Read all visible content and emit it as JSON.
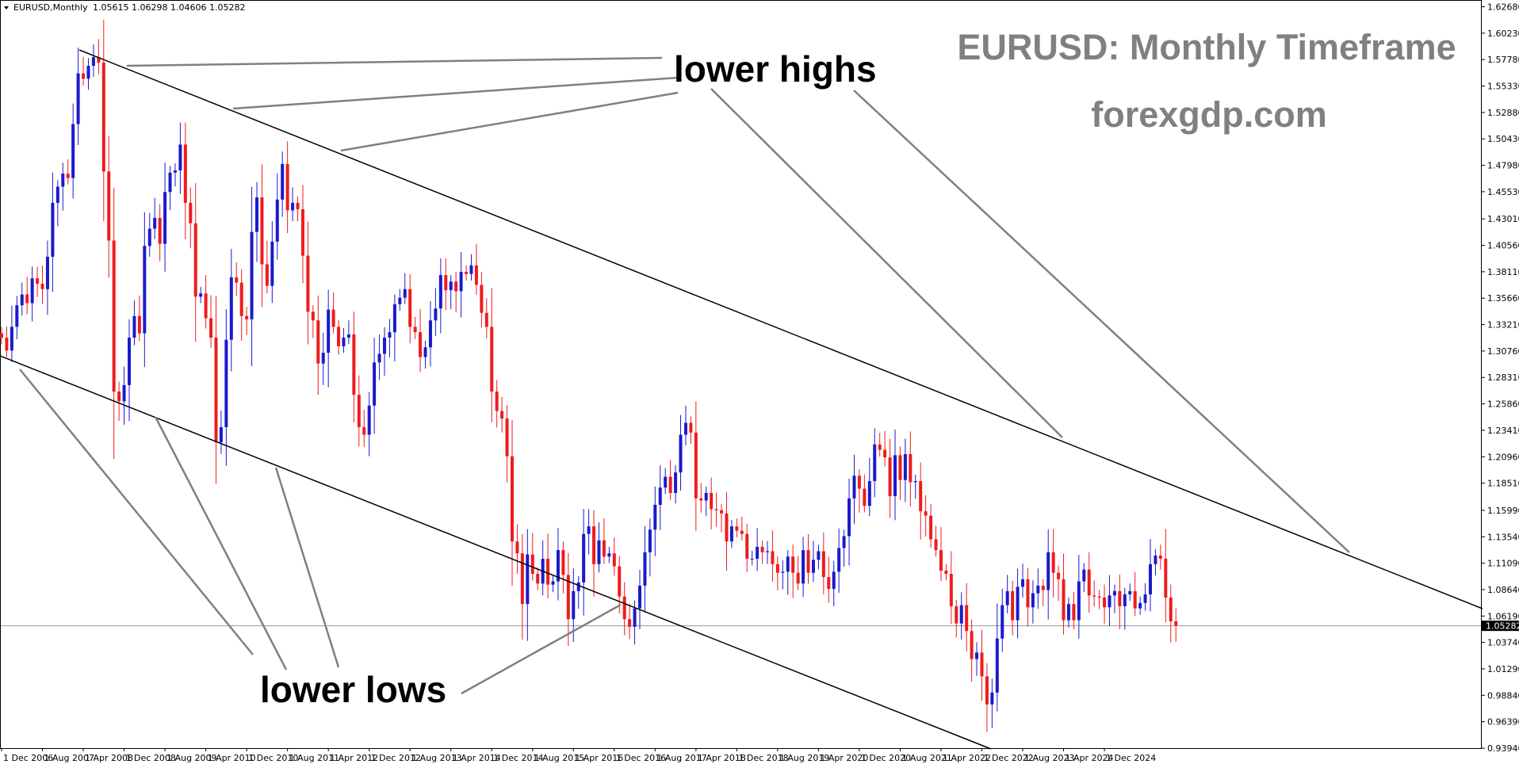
{
  "header": {
    "symbol_label": "EURUSD,Monthly",
    "ohlc": "1.05615 1.06298 1.04606 1.05282"
  },
  "watermark": {
    "title": "EURUSD: Monthly Timeframe",
    "site": "forexgdp.com"
  },
  "annotations": {
    "lower_highs": "lower highs",
    "lower_lows": "lower lows"
  },
  "colors": {
    "bull": "#1a1acc",
    "bear": "#ee1c1c",
    "grid_axis": "#000000",
    "annotation_line": "#808080",
    "watermark": "#808080"
  },
  "chart_data": {
    "type": "candlestick",
    "title": "EURUSD,Monthly",
    "current_price": 1.05282,
    "y_axis": {
      "range": [
        0.9394,
        1.6323
      ],
      "ticks": [
        "1.62680",
        "1.60230",
        "1.57780",
        "1.55330",
        "1.52880",
        "1.50430",
        "1.47980",
        "1.45530",
        "1.43010",
        "1.40560",
        "1.38110",
        "1.35660",
        "1.33210",
        "1.30760",
        "1.28310",
        "1.25860",
        "1.23410",
        "1.20960",
        "1.18510",
        "1.15990",
        "1.13540",
        "1.11090",
        "1.08640",
        "1.06190",
        "1.05282",
        "1.03740",
        "1.01290",
        "0.98840",
        "0.96390",
        "0.93940"
      ]
    },
    "x_axis": {
      "ticks": [
        "1 Dec 2006",
        "1 Aug 2007",
        "1 Apr 2008",
        "1 Dec 2008",
        "1 Aug 2009",
        "1 Apr 2010",
        "1 Dec 2010",
        "1 Aug 2011",
        "1 Apr 2012",
        "1 Dec 2012",
        "1 Aug 2013",
        "1 Apr 2014",
        "1 Dec 2014",
        "1 Aug 2015",
        "1 Apr 2016",
        "1 Dec 2016",
        "1 Aug 2017",
        "1 Apr 2018",
        "1 Dec 2018",
        "1 Aug 2019",
        "1 Apr 2020",
        "1 Dec 2020",
        "1 Aug 2021",
        "1 Apr 2022",
        "1 Dec 2022",
        "1 Aug 2023",
        "1 Apr 2024",
        "1 Dec 2024"
      ]
    },
    "series": [
      {
        "start": "2006-12",
        "closes": [
          1.32,
          1.308,
          1.33,
          1.35,
          1.36,
          1.352,
          1.375,
          1.37,
          1.365,
          1.395,
          1.445,
          1.46,
          1.472,
          1.468,
          1.518,
          1.565,
          1.56,
          1.572,
          1.58,
          1.575,
          1.474,
          1.41,
          1.27,
          1.261,
          1.276,
          1.32,
          1.34,
          1.324,
          1.405,
          1.421,
          1.431,
          1.407,
          1.455,
          1.473,
          1.475,
          1.499,
          1.445,
          1.426,
          1.358,
          1.361,
          1.338,
          1.32,
          1.223,
          1.237,
          1.318,
          1.376,
          1.371,
          1.34,
          1.337,
          1.418,
          1.45,
          1.388,
          1.368,
          1.409,
          1.448,
          1.481,
          1.438,
          1.445,
          1.439,
          1.396,
          1.344,
          1.336,
          1.296,
          1.306,
          1.346,
          1.33,
          1.312,
          1.32,
          1.323,
          1.267,
          1.237,
          1.23,
          1.257,
          1.297,
          1.305,
          1.32,
          1.325,
          1.351,
          1.357,
          1.365,
          1.33,
          1.325,
          1.302,
          1.311,
          1.336,
          1.347,
          1.378,
          1.364,
          1.372,
          1.363,
          1.381,
          1.379,
          1.387,
          1.369,
          1.343,
          1.33,
          1.27,
          1.252,
          1.245,
          1.21,
          1.131,
          1.12,
          1.073,
          1.119,
          1.101,
          1.092,
          1.115,
          1.091,
          1.094,
          1.123,
          1.1,
          1.059,
          1.085,
          1.093,
          1.138,
          1.145,
          1.11,
          1.132,
          1.117,
          1.12,
          1.108,
          1.08,
          1.059,
          1.052,
          1.069,
          1.09,
          1.121,
          1.142,
          1.165,
          1.181,
          1.191,
          1.176,
          1.195,
          1.23,
          1.241,
          1.232,
          1.171,
          1.169,
          1.176,
          1.161,
          1.16,
          1.157,
          1.131,
          1.145,
          1.141,
          1.138,
          1.115,
          1.115,
          1.126,
          1.121,
          1.122,
          1.11,
          1.102,
          1.103,
          1.117,
          1.102,
          1.092,
          1.123,
          1.102,
          1.114,
          1.122,
          1.098,
          1.087,
          1.103,
          1.125,
          1.136,
          1.171,
          1.192,
          1.18,
          1.164,
          1.187,
          1.221,
          1.216,
          1.209,
          1.173,
          1.211,
          1.188,
          1.212,
          1.186,
          1.187,
          1.159,
          1.155,
          1.133,
          1.123,
          1.104,
          1.101,
          1.071,
          1.055,
          1.072,
          1.048,
          1.022,
          1.028,
          1.006,
          0.98,
          0.991,
          1.041,
          1.072,
          1.085,
          1.058,
          1.089,
          1.096,
          1.07,
          1.083,
          1.09,
          1.086,
          1.121,
          1.102,
          1.096,
          1.058,
          1.073,
          1.058,
          1.094,
          1.105,
          1.081,
          1.08,
          1.079,
          1.07,
          1.081,
          1.085,
          1.071,
          1.082,
          1.085,
          1.069,
          1.074,
          1.082,
          1.11,
          1.118,
          1.115,
          1.079,
          1.057,
          1.053
        ]
      }
    ]
  }
}
